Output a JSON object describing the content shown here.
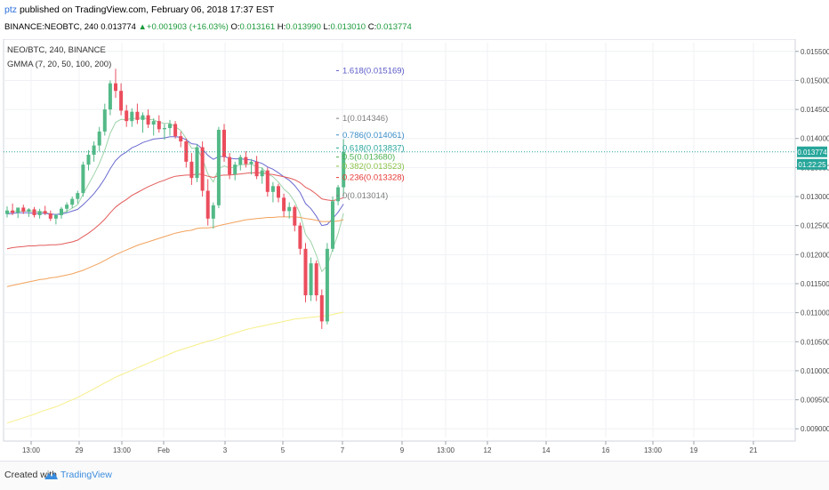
{
  "header": {
    "author": "ptz",
    "published": "published on TradingView.com, February 06, 2018 17:37 EST",
    "ticker": "BINANCE:NEOBTC, 240",
    "last": "0.013774",
    "change": "+0.001903 (+16.03%)",
    "o_label": "O:",
    "o_value": "0.013161",
    "h_label": "H:",
    "h_value": "0.013990",
    "l_label": "L:",
    "l_value": "0.013010",
    "c_label": "C:",
    "c_value": "0.013774"
  },
  "legend": {
    "symbol": "NEO/BTC, 240, BINANCE",
    "indicator": "GMMA (7, 20, 50, 100, 200)"
  },
  "price_tag": {
    "value": "0.013774",
    "countdown": "01:22:25",
    "color": "#26a69a"
  },
  "footer": {
    "created": "Created with",
    "brand": "TradingView"
  },
  "chart_data": {
    "type": "candlestick",
    "y_axis": {
      "range": [
        0.00885,
        0.01565
      ],
      "ticks": [
        "0.015500",
        "0.015000",
        "0.014500",
        "0.014000",
        "0.013500",
        "0.013000",
        "0.012500",
        "0.012000",
        "0.011500",
        "0.011000",
        "0.010500",
        "0.010000",
        "0.009500",
        "0.009000"
      ]
    },
    "x_axis": {
      "ticks": [
        "13:00",
        "29",
        "13:00",
        "Feb",
        "3",
        "5",
        "7",
        "9",
        "13:00",
        "12",
        "14",
        "16",
        "13:00",
        "19",
        "21"
      ]
    },
    "candles": [
      [
        0.0127,
        0.01283,
        0.01264,
        0.01276
      ],
      [
        0.01276,
        0.01288,
        0.01268,
        0.01272
      ],
      [
        0.01272,
        0.0128,
        0.01263,
        0.01281
      ],
      [
        0.01281,
        0.01286,
        0.0127,
        0.01274
      ],
      [
        0.01274,
        0.0128,
        0.01265,
        0.01278
      ],
      [
        0.01278,
        0.01282,
        0.01264,
        0.01268
      ],
      [
        0.01268,
        0.01279,
        0.01262,
        0.01275
      ],
      [
        0.01275,
        0.01284,
        0.01268,
        0.01271
      ],
      [
        0.01271,
        0.01276,
        0.01258,
        0.01262
      ],
      [
        0.01262,
        0.0127,
        0.01252,
        0.01268
      ],
      [
        0.01268,
        0.01282,
        0.01262,
        0.01279
      ],
      [
        0.01279,
        0.0129,
        0.01272,
        0.01286
      ],
      [
        0.01286,
        0.013,
        0.0128,
        0.01296
      ],
      [
        0.01296,
        0.0131,
        0.01288,
        0.01306
      ],
      [
        0.01306,
        0.0136,
        0.013,
        0.01355
      ],
      [
        0.01355,
        0.0138,
        0.01345,
        0.01372
      ],
      [
        0.01372,
        0.01395,
        0.0136,
        0.01388
      ],
      [
        0.01388,
        0.0142,
        0.01378,
        0.01412
      ],
      [
        0.01412,
        0.0146,
        0.01405,
        0.0145
      ],
      [
        0.0145,
        0.015,
        0.0144,
        0.01495
      ],
      [
        0.01495,
        0.0152,
        0.0147,
        0.01482
      ],
      [
        0.01482,
        0.01495,
        0.0144,
        0.01448
      ],
      [
        0.01448,
        0.01458,
        0.0142,
        0.0143
      ],
      [
        0.0143,
        0.01452,
        0.0142,
        0.01446
      ],
      [
        0.01446,
        0.0146,
        0.01425,
        0.01432
      ],
      [
        0.01432,
        0.01445,
        0.0141,
        0.0144
      ],
      [
        0.0144,
        0.0145,
        0.01418,
        0.01424
      ],
      [
        0.01424,
        0.01435,
        0.01405,
        0.0143
      ],
      [
        0.0143,
        0.0144,
        0.0141,
        0.01416
      ],
      [
        0.01416,
        0.01425,
        0.01398,
        0.01418
      ],
      [
        0.01418,
        0.01432,
        0.01405,
        0.01425
      ],
      [
        0.01425,
        0.0143,
        0.014,
        0.01404
      ],
      [
        0.01404,
        0.01412,
        0.01385,
        0.01395
      ],
      [
        0.01395,
        0.014,
        0.0135,
        0.0136
      ],
      [
        0.0136,
        0.01375,
        0.0132,
        0.01332
      ],
      [
        0.01332,
        0.0139,
        0.01325,
        0.01385
      ],
      [
        0.01385,
        0.01395,
        0.013,
        0.0131
      ],
      [
        0.0131,
        0.0133,
        0.0125,
        0.01262
      ],
      [
        0.01262,
        0.0129,
        0.01245,
        0.01285
      ],
      [
        0.01285,
        0.0142,
        0.0128,
        0.01415
      ],
      [
        0.01415,
        0.01425,
        0.0136,
        0.01368
      ],
      [
        0.01368,
        0.01375,
        0.0133,
        0.01338
      ],
      [
        0.01338,
        0.0136,
        0.01328,
        0.01355
      ],
      [
        0.01355,
        0.01372,
        0.01345,
        0.01368
      ],
      [
        0.01368,
        0.01378,
        0.0135,
        0.01356
      ],
      [
        0.01356,
        0.01365,
        0.01338,
        0.0136
      ],
      [
        0.0136,
        0.0137,
        0.0133,
        0.01335
      ],
      [
        0.01335,
        0.0135,
        0.01322,
        0.01345
      ],
      [
        0.01345,
        0.0135,
        0.013,
        0.01308
      ],
      [
        0.01308,
        0.01325,
        0.0129,
        0.01318
      ],
      [
        0.01318,
        0.01322,
        0.0129,
        0.01298
      ],
      [
        0.01298,
        0.01305,
        0.01265,
        0.01275
      ],
      [
        0.01275,
        0.0129,
        0.01262,
        0.01282
      ],
      [
        0.01282,
        0.01285,
        0.0124,
        0.0125
      ],
      [
        0.0125,
        0.01255,
        0.012,
        0.0121
      ],
      [
        0.0121,
        0.0122,
        0.01118,
        0.0113
      ],
      [
        0.0113,
        0.01195,
        0.0112,
        0.01185
      ],
      [
        0.01185,
        0.0119,
        0.0112,
        0.0113
      ],
      [
        0.0113,
        0.0114,
        0.01072,
        0.01085
      ],
      [
        0.01085,
        0.0122,
        0.0108,
        0.0121
      ],
      [
        0.0121,
        0.013,
        0.01205,
        0.01292
      ],
      [
        0.01292,
        0.0132,
        0.01285,
        0.01316
      ],
      [
        0.01316,
        0.01399,
        0.01301,
        0.01377
      ]
    ],
    "series": [
      {
        "color": "#9fd3a8",
        "values": [
          0.01272,
          0.01274,
          0.01275,
          0.01275,
          0.01275,
          0.01274,
          0.01274,
          0.01273,
          0.0127,
          0.01269,
          0.01271,
          0.01275,
          0.0128,
          0.01286,
          0.01304,
          0.01321,
          0.01338,
          0.01357,
          0.0138,
          0.01409,
          0.01428,
          0.01433,
          0.01432,
          0.01435,
          0.01434,
          0.01436,
          0.01433,
          0.01432,
          0.01428,
          0.01426,
          0.01426,
          0.0142,
          0.01414,
          0.014,
          0.01383,
          0.01383,
          0.01365,
          0.01339,
          0.01325,
          0.01348,
          0.01353,
          0.01349,
          0.01351,
          0.01355,
          0.01355,
          0.01356,
          0.01351,
          0.01349,
          0.01339,
          0.01334,
          0.01325,
          0.01313,
          0.01305,
          0.01291,
          0.0127,
          0.01235,
          0.01222,
          0.01199,
          0.01171,
          0.01181,
          0.01209,
          0.01236,
          0.01271
        ]
      },
      {
        "color": "#6a6ad0",
        "values": [
          0.0127,
          0.01271,
          0.01272,
          0.01272,
          0.01272,
          0.01271,
          0.01271,
          0.01271,
          0.0127,
          0.01269,
          0.0127,
          0.01272,
          0.01275,
          0.01278,
          0.01286,
          0.01295,
          0.01305,
          0.01317,
          0.01331,
          0.01348,
          0.01362,
          0.01371,
          0.01377,
          0.01384,
          0.01388,
          0.01393,
          0.01396,
          0.01399,
          0.014,
          0.01401,
          0.01403,
          0.01403,
          0.01402,
          0.01398,
          0.01391,
          0.0139,
          0.01382,
          0.01371,
          0.01364,
          0.01369,
          0.01369,
          0.01366,
          0.01365,
          0.01365,
          0.01364,
          0.01363,
          0.0136,
          0.01357,
          0.01351,
          0.01347,
          0.01341,
          0.01334,
          0.01328,
          0.01319,
          0.01307,
          0.01288,
          0.01279,
          0.01266,
          0.0125,
          0.01252,
          0.01262,
          0.01273,
          0.01287
        ]
      },
      {
        "color": "#e35b5b",
        "values": [
          0.0121,
          0.01212,
          0.01213,
          0.01214,
          0.01215,
          0.01215,
          0.01216,
          0.01216,
          0.01217,
          0.01217,
          0.01218,
          0.0122,
          0.01222,
          0.01225,
          0.01231,
          0.01237,
          0.01244,
          0.01252,
          0.01261,
          0.01272,
          0.01282,
          0.01289,
          0.01295,
          0.01302,
          0.01307,
          0.01312,
          0.01317,
          0.01321,
          0.01325,
          0.01328,
          0.01332,
          0.01335,
          0.01336,
          0.01337,
          0.01337,
          0.01339,
          0.01338,
          0.01335,
          0.01333,
          0.01336,
          0.01337,
          0.01337,
          0.01338,
          0.01339,
          0.0134,
          0.01341,
          0.01341,
          0.01341,
          0.01339,
          0.01338,
          0.01336,
          0.01334,
          0.01332,
          0.01329,
          0.01324,
          0.01316,
          0.01311,
          0.01304,
          0.01296,
          0.01294,
          0.01293,
          0.01295,
          0.01298
        ]
      },
      {
        "color": "#f2a25c",
        "values": [
          0.01145,
          0.01147,
          0.01149,
          0.01151,
          0.01153,
          0.01155,
          0.01157,
          0.01158,
          0.0116,
          0.01161,
          0.01163,
          0.01165,
          0.01167,
          0.0117,
          0.01173,
          0.01177,
          0.01181,
          0.01185,
          0.0119,
          0.01195,
          0.012,
          0.01204,
          0.01208,
          0.01212,
          0.01216,
          0.01219,
          0.01222,
          0.01225,
          0.01228,
          0.01231,
          0.01234,
          0.01237,
          0.01239,
          0.01241,
          0.01242,
          0.01245,
          0.01246,
          0.01246,
          0.01247,
          0.0125,
          0.01252,
          0.01254,
          0.01256,
          0.01258,
          0.0126,
          0.01261,
          0.01262,
          0.01263,
          0.01264,
          0.01264,
          0.01265,
          0.01265,
          0.01265,
          0.01265,
          0.01264,
          0.01262,
          0.01261,
          0.01259,
          0.01257,
          0.01257,
          0.01257,
          0.01258,
          0.0126
        ]
      },
      {
        "color": "#f7ef8a",
        "values": [
          0.0091,
          0.00913,
          0.00916,
          0.00919,
          0.00922,
          0.00925,
          0.00929,
          0.00932,
          0.00935,
          0.00938,
          0.00942,
          0.00946,
          0.0095,
          0.00954,
          0.00959,
          0.00964,
          0.00969,
          0.00974,
          0.00979,
          0.00984,
          0.00989,
          0.00993,
          0.00997,
          0.01001,
          0.01005,
          0.01009,
          0.01013,
          0.01017,
          0.01021,
          0.01025,
          0.01029,
          0.01033,
          0.01036,
          0.01039,
          0.01042,
          0.01045,
          0.01048,
          0.01051,
          0.01053,
          0.01056,
          0.01059,
          0.01062,
          0.01065,
          0.01068,
          0.01071,
          0.01073,
          0.01075,
          0.01077,
          0.01079,
          0.01081,
          0.01083,
          0.01085,
          0.01087,
          0.01089,
          0.0109,
          0.01091,
          0.01092,
          0.01093,
          0.01094,
          0.01095,
          0.01097,
          0.01099,
          0.01101
        ]
      }
    ],
    "fib_levels": [
      {
        "label": "1.618(0.015169)",
        "value": 0.015169,
        "color": "#5a5ac8"
      },
      {
        "label": "1(0.014346)",
        "value": 0.014346,
        "color": "#7d7d7d"
      },
      {
        "label": "0.786(0.014061)",
        "value": 0.014061,
        "color": "#3a8dc8"
      },
      {
        "label": "0.618(0.013837)",
        "value": 0.013837,
        "color": "#26a69a"
      },
      {
        "label": "0.5(0.013680)",
        "value": 0.01368,
        "color": "#4caf50"
      },
      {
        "label": "0.382(0.013523)",
        "value": 0.013523,
        "color": "#8bc34a"
      },
      {
        "label": "0.236(0.013328)",
        "value": 0.013328,
        "color": "#e53935"
      },
      {
        "label": "0(0.013014)",
        "value": 0.013014,
        "color": "#7d7d7d"
      }
    ]
  }
}
